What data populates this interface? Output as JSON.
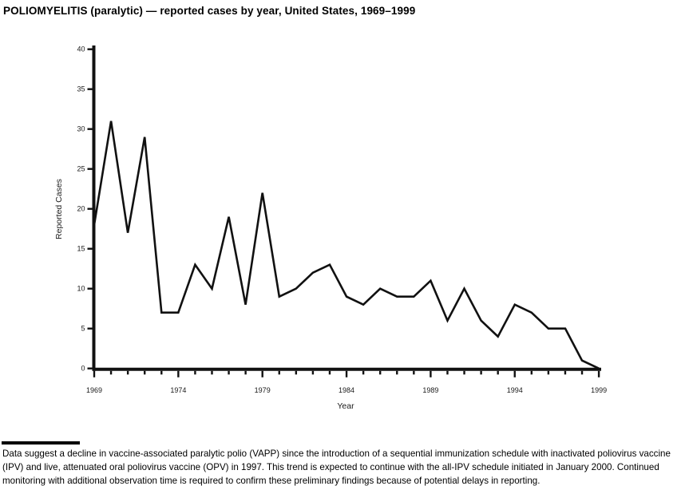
{
  "title": "POLIOMYELITIS (paralytic) — reported cases by year, United States, 1969–1999",
  "chart_data": {
    "type": "line",
    "title": "POLIOMYELITIS (paralytic) — reported cases by year, United States, 1969–1999",
    "xlabel": "Year",
    "ylabel": "Reported Cases",
    "x": [
      1969,
      1970,
      1971,
      1972,
      1973,
      1974,
      1975,
      1976,
      1977,
      1978,
      1979,
      1980,
      1981,
      1982,
      1983,
      1984,
      1985,
      1986,
      1987,
      1988,
      1989,
      1990,
      1991,
      1992,
      1993,
      1994,
      1995,
      1996,
      1997,
      1998,
      1999
    ],
    "values": [
      18,
      31,
      17,
      29,
      7,
      7,
      13,
      10,
      19,
      8,
      22,
      9,
      10,
      12,
      13,
      9,
      8,
      10,
      9,
      9,
      11,
      6,
      10,
      6,
      4,
      8,
      7,
      5,
      5,
      1,
      0
    ],
    "ylim": [
      0,
      40
    ],
    "yticks": [
      0,
      5,
      10,
      15,
      20,
      25,
      30,
      35,
      40
    ],
    "xticks_labeled": [
      1969,
      1974,
      1979,
      1984,
      1989,
      1994,
      1999
    ],
    "grid": false,
    "legend": "none",
    "line_color": "#111111",
    "axis_color": "#111111"
  },
  "footnote": {
    "text": "Data suggest a decline in vaccine-associated paralytic polio (VAPP) since the introduction of a sequential immunization schedule with inactivated poliovirus vaccine (IPV) and live, attenuated oral poliovirus vaccine (OPV) in 1997. This trend is expected to continue with the all-IPV schedule initiated in January 2000. Continued monitoring with additional observation time is required to confirm these preliminary findings because of potential delays in reporting."
  }
}
